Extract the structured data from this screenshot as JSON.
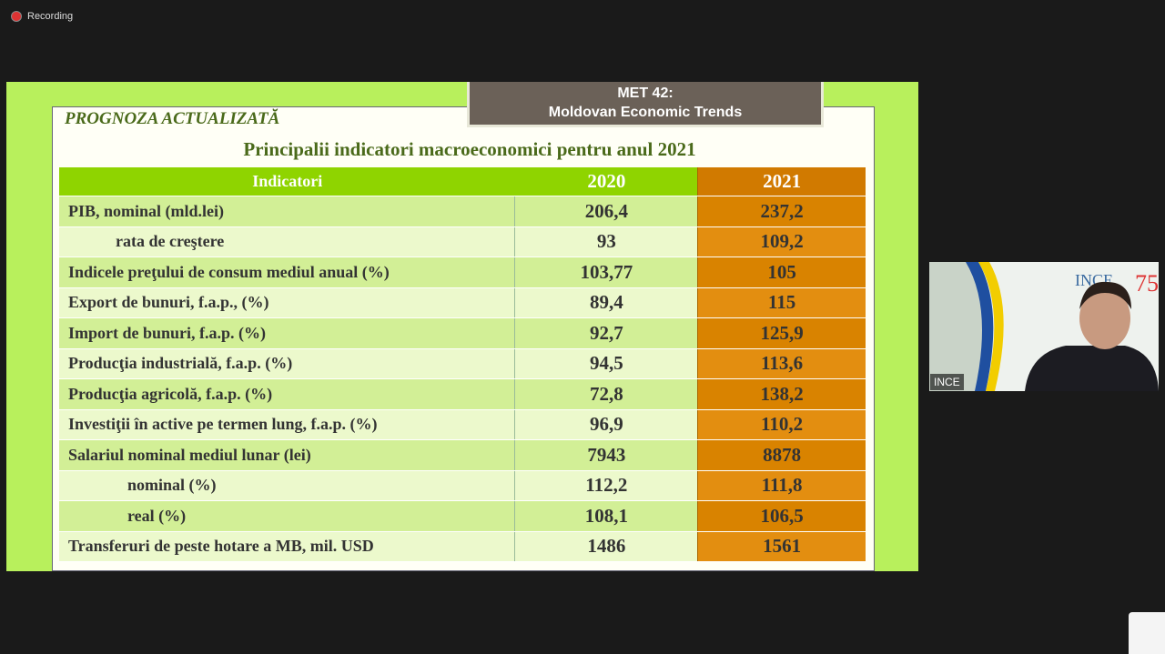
{
  "recording": "Recording",
  "slide": {
    "badge": [
      "MET 42:",
      "Moldovan Economic Trends"
    ],
    "section_title": "PROGNOZA ACTUALIZATĂ",
    "table_title": "Principalii indicatori macroeconomici pentru anul 2021",
    "table": {
      "columns": [
        "Indicatori",
        "2020",
        "2021"
      ],
      "rows": [
        [
          "PIB, nominal (mld.lei)",
          "206,4",
          "237,2"
        ],
        [
          "rata de creştere",
          "93",
          "109,2"
        ],
        [
          "Indicele preţului de consum mediul anual (%)",
          "103,77",
          "105"
        ],
        [
          "Export de bunuri, f.a.p., (%)",
          "89,4",
          "115"
        ],
        [
          "Import de bunuri, f.a.p. (%)",
          "92,7",
          "125,9"
        ],
        [
          "Producţia industrială, f.a.p. (%)",
          "94,5",
          "113,6"
        ],
        [
          "Producţia agricolă, f.a.p. (%)",
          "72,8",
          "138,2"
        ],
        [
          "Investiţii în active pe termen lung, f.a.p. (%)",
          "96,9",
          "110,2"
        ],
        [
          "Salariul nominal mediul lunar (lei)",
          "7943",
          "8878"
        ],
        [
          "nominal (%)",
          "112,2",
          "111,8"
        ],
        [
          "real (%)",
          "108,1",
          "106,5"
        ],
        [
          "Transferuri de peste hotare a MB,  mil. USD",
          "1486",
          "1561"
        ]
      ]
    }
  },
  "participant": {
    "name": "INCE",
    "logo": "INCE",
    "logo_number": "75"
  }
}
